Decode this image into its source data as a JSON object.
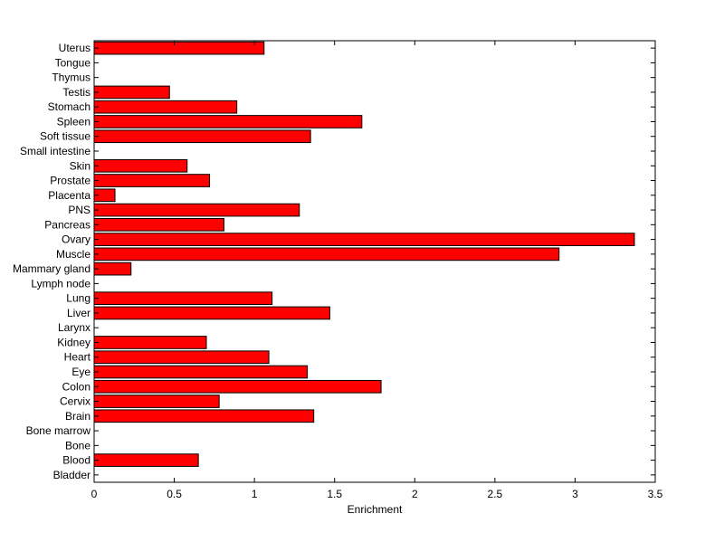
{
  "chart_data": {
    "type": "bar",
    "orientation": "horizontal",
    "xlabel": "Enrichment",
    "ylabel": "",
    "title": "",
    "xlim": [
      0,
      3.5
    ],
    "x_ticks": [
      0,
      0.5,
      1,
      1.5,
      2,
      2.5,
      3,
      3.5
    ],
    "x_tick_labels": [
      "0",
      "0.5",
      "1",
      "1.5",
      "2",
      "2.5",
      "3",
      "3.5"
    ],
    "grid": false,
    "bar_color": "#ff0000",
    "bar_edge_color": "#000000",
    "categories": [
      "Uterus",
      "Tongue",
      "Thymus",
      "Testis",
      "Stomach",
      "Spleen",
      "Soft tissue",
      "Small intestine",
      "Skin",
      "Prostate",
      "Placenta",
      "PNS",
      "Pancreas",
      "Ovary",
      "Muscle",
      "Mammary gland",
      "Lymph node",
      "Lung",
      "Liver",
      "Larynx",
      "Kidney",
      "Heart",
      "Eye",
      "Colon",
      "Cervix",
      "Brain",
      "Bone marrow",
      "Bone",
      "Blood",
      "Bladder"
    ],
    "values": [
      1.06,
      0,
      0,
      0.47,
      0.89,
      1.67,
      1.35,
      0,
      0.58,
      0.72,
      0.13,
      1.28,
      0.81,
      3.37,
      2.9,
      0.23,
      0,
      1.11,
      1.47,
      0,
      0.7,
      1.09,
      1.33,
      1.79,
      0.78,
      1.37,
      0,
      0,
      0.65,
      0
    ]
  }
}
